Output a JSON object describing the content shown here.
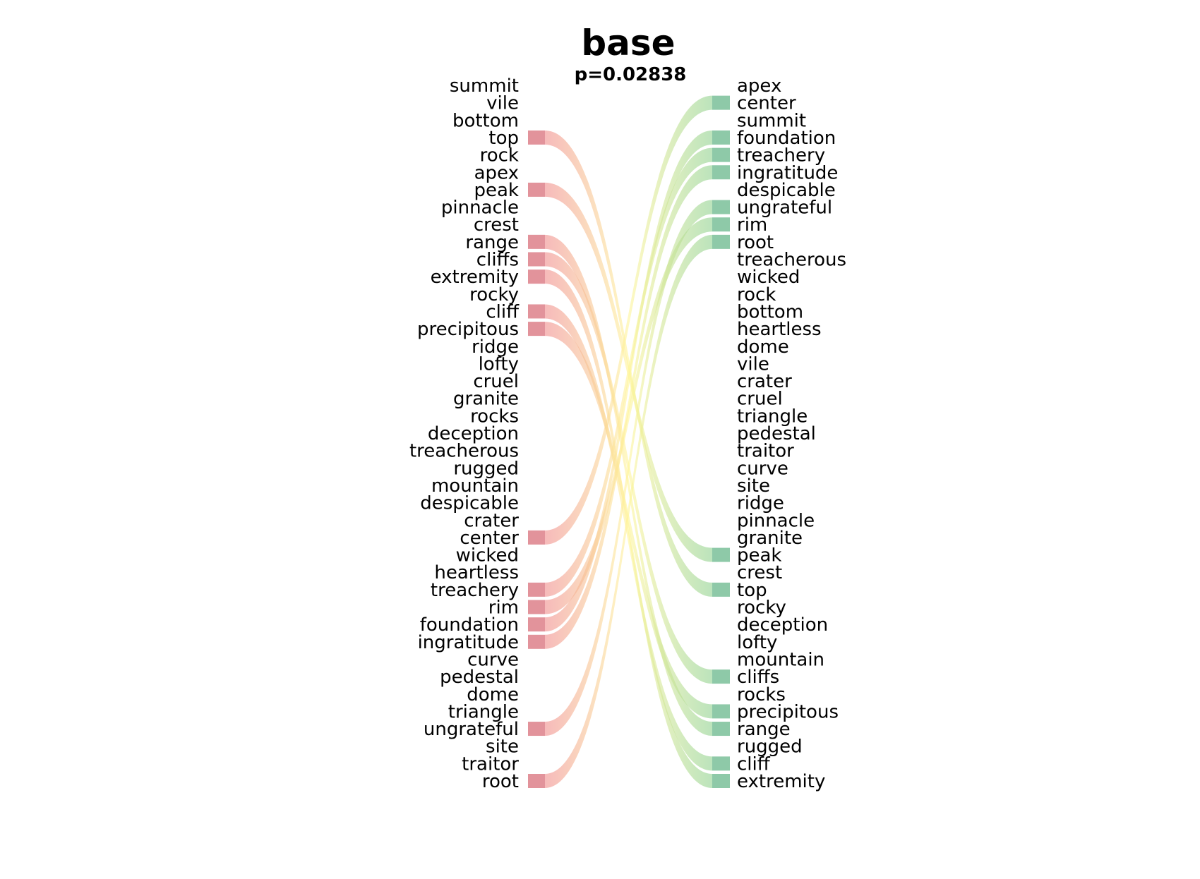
{
  "title": "base",
  "subtitle": "p=0.02838",
  "left_words": [
    "summit",
    "vile",
    "bottom",
    "top",
    "rock",
    "apex",
    "peak",
    "pinnacle",
    "crest",
    "range",
    "cliffs",
    "extremity",
    "rocky",
    "cliff",
    "precipitous",
    "ridge",
    "lofty",
    "cruel",
    "granite",
    "rocks",
    "deception",
    "treacherous",
    "rugged",
    "mountain",
    "despicable",
    "crater",
    "center",
    "wicked",
    "heartless",
    "treachery",
    "rim",
    "foundation",
    "ingratitude",
    "curve",
    "pedestal",
    "dome",
    "triangle",
    "ungrateful",
    "site",
    "traitor",
    "root"
  ],
  "right_words": [
    "apex",
    "center",
    "summit",
    "foundation",
    "treachery",
    "ingratitude",
    "despicable",
    "ungrateful",
    "rim",
    "root",
    "treacherous",
    "wicked",
    "rock",
    "bottom",
    "heartless",
    "dome",
    "vile",
    "crater",
    "cruel",
    "triangle",
    "pedestal",
    "traitor",
    "curve",
    "site",
    "ridge",
    "pinnacle",
    "granite",
    "peak",
    "crest",
    "top",
    "rocky",
    "deception",
    "lofty",
    "mountain",
    "cliffs",
    "rocks",
    "precipitous",
    "range",
    "rugged",
    "cliff",
    "extremity"
  ],
  "links": [
    {
      "from": "top",
      "to": "top"
    },
    {
      "from": "peak",
      "to": "peak"
    },
    {
      "from": "range",
      "to": "range"
    },
    {
      "from": "cliffs",
      "to": "cliffs"
    },
    {
      "from": "extremity",
      "to": "extremity"
    },
    {
      "from": "cliff",
      "to": "cliff"
    },
    {
      "from": "precipitous",
      "to": "precipitous"
    },
    {
      "from": "center",
      "to": "center"
    },
    {
      "from": "treachery",
      "to": "treachery"
    },
    {
      "from": "rim",
      "to": "rim"
    },
    {
      "from": "foundation",
      "to": "foundation"
    },
    {
      "from": "ingratitude",
      "to": "ingratitude"
    },
    {
      "from": "ungrateful",
      "to": "ungrateful"
    },
    {
      "from": "root",
      "to": "root"
    }
  ],
  "colors": {
    "left_bar": "#e2939b",
    "right_bar": "#8ec9a8",
    "left_start": "#f08c8c",
    "mid": "#fff59a",
    "right_end": "#8fd18f"
  }
}
